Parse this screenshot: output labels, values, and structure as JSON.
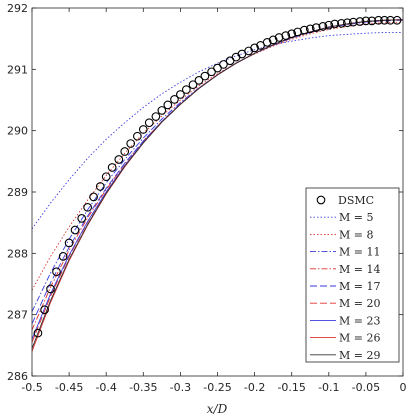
{
  "chart_data": {
    "type": "line",
    "title": "",
    "xlabel": "x/D",
    "ylabel": "",
    "xlim": [
      -0.5,
      0
    ],
    "ylim": [
      286,
      292
    ],
    "xticks": [
      "-0.5",
      "-0.45",
      "-0.4",
      "-0.35",
      "-0.3",
      "-0.25",
      "-0.2",
      "-0.15",
      "-0.1",
      "-0.05",
      "0"
    ],
    "yticks": [
      "286",
      "287",
      "288",
      "289",
      "290",
      "291",
      "292"
    ],
    "grid": false,
    "legend_position": "bottom-right",
    "markers": {
      "name": "DSMC",
      "x": [
        -0.492,
        -0.483,
        -0.475,
        -0.467,
        -0.458,
        -0.45,
        -0.442,
        -0.433,
        -0.425,
        -0.417,
        -0.408,
        -0.4,
        -0.392,
        -0.383,
        -0.375,
        -0.367,
        -0.358,
        -0.35,
        -0.342,
        -0.333,
        -0.325,
        -0.317,
        -0.308,
        -0.3,
        -0.292,
        -0.283,
        -0.275,
        -0.267,
        -0.258,
        -0.25,
        -0.242,
        -0.233,
        -0.225,
        -0.217,
        -0.208,
        -0.2,
        -0.192,
        -0.183,
        -0.175,
        -0.167,
        -0.158,
        -0.15,
        -0.142,
        -0.133,
        -0.125,
        -0.117,
        -0.108,
        -0.1,
        -0.092,
        -0.083,
        -0.075,
        -0.067,
        -0.058,
        -0.05,
        -0.042,
        -0.033,
        -0.025,
        -0.017,
        -0.008
      ],
      "y": [
        286.7,
        287.08,
        287.42,
        287.7,
        287.95,
        288.17,
        288.38,
        288.57,
        288.75,
        288.92,
        289.09,
        289.25,
        289.4,
        289.53,
        289.66,
        289.79,
        289.91,
        290.02,
        290.13,
        290.23,
        290.33,
        290.42,
        290.51,
        290.59,
        290.67,
        290.75,
        290.82,
        290.89,
        290.96,
        291.02,
        291.08,
        291.14,
        291.2,
        291.25,
        291.3,
        291.35,
        291.39,
        291.44,
        291.48,
        291.52,
        291.55,
        291.58,
        291.61,
        291.64,
        291.66,
        291.68,
        291.7,
        291.72,
        291.74,
        291.75,
        291.76,
        291.77,
        291.78,
        291.79,
        291.79,
        291.8,
        291.8,
        291.8,
        291.8
      ]
    },
    "x": [
      -0.5,
      -0.475,
      -0.45,
      -0.425,
      -0.4,
      -0.375,
      -0.35,
      -0.325,
      -0.3,
      -0.275,
      -0.25,
      -0.225,
      -0.2,
      -0.175,
      -0.15,
      -0.125,
      -0.1,
      -0.075,
      -0.05,
      -0.025,
      0
    ],
    "series": [
      {
        "name": "M = 5",
        "color": "#3a3adf",
        "dash": "1.5,2",
        "y": [
          288.4,
          288.82,
          289.2,
          289.55,
          289.86,
          290.13,
          290.38,
          290.6,
          290.79,
          290.96,
          291.1,
          291.22,
          291.32,
          291.4,
          291.46,
          291.51,
          291.55,
          291.57,
          291.59,
          291.6,
          291.6
        ]
      },
      {
        "name": "M = 8",
        "color": "#e03030",
        "dash": "1.5,2",
        "y": [
          287.4,
          287.95,
          288.43,
          288.87,
          289.27,
          289.63,
          289.96,
          290.24,
          290.5,
          290.73,
          290.93,
          291.1,
          291.25,
          291.38,
          291.49,
          291.58,
          291.65,
          291.7,
          291.74,
          291.76,
          291.77
        ]
      },
      {
        "name": "M = 11",
        "color": "#3a3adf",
        "dash": "6,2,1.5,2",
        "y": [
          287.05,
          287.68,
          288.23,
          288.71,
          289.15,
          289.53,
          289.88,
          290.19,
          290.46,
          290.7,
          290.91,
          291.1,
          291.26,
          291.39,
          291.51,
          291.6,
          291.68,
          291.73,
          291.77,
          291.79,
          291.8
        ]
      },
      {
        "name": "M = 14",
        "color": "#e03030",
        "dash": "6,2,1.5,2",
        "y": [
          286.75,
          287.45,
          288.05,
          288.58,
          289.04,
          289.46,
          289.83,
          290.15,
          290.44,
          290.69,
          290.91,
          291.1,
          291.26,
          291.4,
          291.52,
          291.61,
          291.69,
          291.74,
          291.78,
          291.8,
          291.81
        ]
      },
      {
        "name": "M = 17",
        "color": "#3a3adf",
        "dash": "7,3",
        "y": [
          286.85,
          287.52,
          288.1,
          288.61,
          289.06,
          289.47,
          289.83,
          290.15,
          290.44,
          290.69,
          290.91,
          291.1,
          291.26,
          291.4,
          291.52,
          291.61,
          291.69,
          291.74,
          291.78,
          291.8,
          291.81
        ]
      },
      {
        "name": "M = 20",
        "color": "#e03030",
        "dash": "7,3",
        "y": [
          286.55,
          287.3,
          287.95,
          288.51,
          289.0,
          289.43,
          289.81,
          290.14,
          290.43,
          290.69,
          290.91,
          291.1,
          291.26,
          291.4,
          291.52,
          291.61,
          291.69,
          291.74,
          291.78,
          291.8,
          291.81
        ]
      },
      {
        "name": "M = 23",
        "color": "#3a3adf",
        "dash": "",
        "y": [
          286.6,
          287.34,
          287.97,
          288.52,
          289.0,
          289.43,
          289.81,
          290.14,
          290.43,
          290.69,
          290.91,
          291.1,
          291.26,
          291.4,
          291.52,
          291.61,
          291.69,
          291.74,
          291.78,
          291.8,
          291.81
        ]
      },
      {
        "name": "M = 26",
        "color": "#e03030",
        "dash": "",
        "y": [
          286.4,
          287.2,
          287.88,
          288.46,
          288.97,
          289.41,
          289.8,
          290.14,
          290.43,
          290.69,
          290.91,
          291.1,
          291.26,
          291.4,
          291.52,
          291.61,
          291.69,
          291.74,
          291.78,
          291.8,
          291.81
        ]
      },
      {
        "name": "M = 29",
        "color": "#333333",
        "dash": "",
        "y": [
          286.45,
          287.23,
          287.9,
          288.47,
          288.98,
          289.42,
          289.8,
          290.14,
          290.43,
          290.69,
          290.91,
          291.1,
          291.26,
          291.4,
          291.52,
          291.61,
          291.69,
          291.74,
          291.78,
          291.8,
          291.81
        ]
      }
    ]
  }
}
